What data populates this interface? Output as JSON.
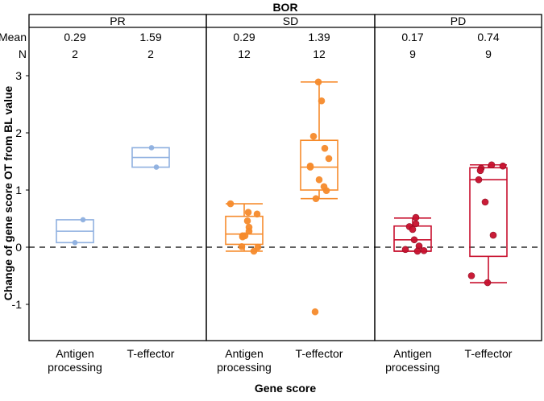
{
  "chart_data": {
    "type": "box",
    "title": "BOR",
    "xlabel": "Gene score",
    "ylabel": "Change of gene score OT from BL value",
    "ylim": [
      -1.63,
      3.3
    ],
    "yticks": [
      -1,
      0,
      1,
      2,
      3
    ],
    "reference_line": 0,
    "row_labels": {
      "mean": "Mean",
      "n": "N"
    },
    "categories": [
      [
        "Antigen",
        "processing"
      ],
      [
        "T-effector"
      ]
    ],
    "panels": [
      {
        "name": "PR",
        "color": "#8fb0e0",
        "groups": [
          {
            "category": "Antigen processing",
            "mean": "0.29",
            "n": "2",
            "q1": 0.08,
            "median": 0.28,
            "q3": 0.48,
            "whisker_low": 0.08,
            "whisker_high": 0.48,
            "points": [
              0.48,
              0.08
            ],
            "show_whiskers": false
          },
          {
            "category": "T-effector",
            "mean": "1.59",
            "n": "2",
            "q1": 1.4,
            "median": 1.57,
            "q3": 1.74,
            "whisker_low": 1.4,
            "whisker_high": 1.74,
            "points": [
              1.74,
              1.4
            ],
            "show_whiskers": false
          }
        ]
      },
      {
        "name": "SD",
        "color": "#f68b2c",
        "groups": [
          {
            "category": "Antigen processing",
            "mean": "0.29",
            "n": "12",
            "q1": 0.05,
            "median": 0.23,
            "q3": 0.54,
            "whisker_low": -0.07,
            "whisker_high": 0.76,
            "points": [
              0.76,
              0.61,
              0.58,
              0.46,
              0.35,
              0.28,
              0.2,
              0.2,
              0.18,
              0.01,
              0.0,
              -0.07
            ],
            "show_whiskers": true
          },
          {
            "category": "T-effector",
            "mean": "1.39",
            "n": "12",
            "q1": 1.0,
            "median": 1.4,
            "q3": 1.87,
            "whisker_low": 0.85,
            "whisker_high": 2.89,
            "points": [
              2.89,
              2.56,
              1.94,
              1.73,
              1.55,
              1.42,
              1.4,
              1.18,
              1.06,
              0.99,
              0.85,
              -1.13
            ],
            "show_whiskers": true
          }
        ]
      },
      {
        "name": "PD",
        "color": "#c8102e",
        "groups": [
          {
            "category": "Antigen processing",
            "mean": "0.17",
            "n": "9",
            "q1": -0.07,
            "median": 0.13,
            "q3": 0.37,
            "whisker_low": -0.07,
            "whisker_high": 0.51,
            "points": [
              0.52,
              0.41,
              0.36,
              0.31,
              0.13,
              0.02,
              -0.04,
              -0.07,
              -0.06
            ],
            "show_whiskers": true
          },
          {
            "category": "T-effector",
            "mean": "0.74",
            "n": "9",
            "q1": -0.16,
            "median": 1.18,
            "q3": 1.39,
            "whisker_low": -0.62,
            "whisker_high": 1.44,
            "points": [
              1.44,
              1.42,
              1.38,
              1.34,
              1.18,
              0.79,
              0.21,
              -0.5,
              -0.62
            ],
            "show_whiskers": true
          }
        ]
      }
    ]
  }
}
